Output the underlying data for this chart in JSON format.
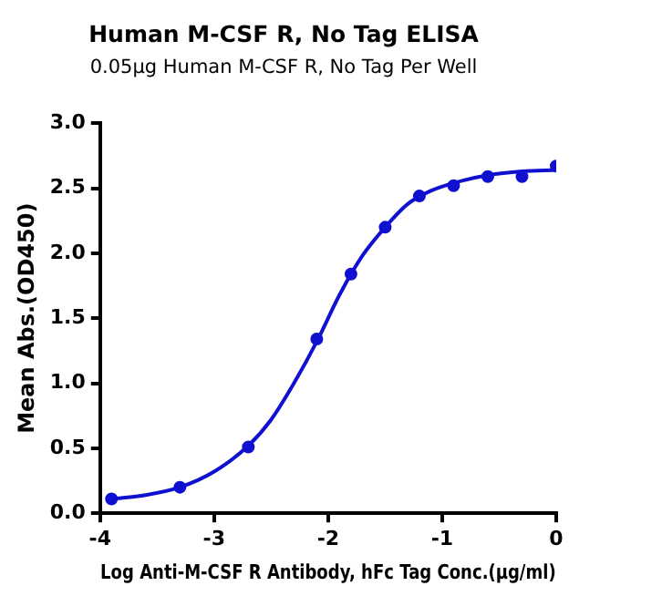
{
  "chart_data": {
    "type": "scatter",
    "title": "Human M-CSF R, No Tag ELISA",
    "subtitle": "0.05μg Human M-CSF R, No Tag Per Well",
    "xlabel": "Log Anti-M-CSF R Antibody, hFc Tag Conc.(μg/ml)",
    "ylabel": "Mean Abs.(OD450)",
    "xlim": [
      -4,
      0
    ],
    "xticks": [
      -4,
      -3,
      -2,
      -1,
      0
    ],
    "ylim": [
      0,
      3
    ],
    "yticks": [
      {
        "value": 0,
        "label": "0.0"
      },
      {
        "value": 0.5,
        "label": "0.5"
      },
      {
        "value": 1,
        "label": "1.0"
      },
      {
        "value": 1.5,
        "label": "1.5"
      },
      {
        "value": 2,
        "label": "2.0"
      },
      {
        "value": 2.5,
        "label": "2.5"
      },
      {
        "value": 3,
        "label": "3.0"
      }
    ],
    "grid": false,
    "legend": false,
    "marker": "circle",
    "series": [
      {
        "type": "scatter",
        "color": "#1010d0",
        "x": [
          -3.9,
          -3.3,
          -2.7,
          -2.1,
          -1.8,
          -1.5,
          -1.2,
          -0.9,
          -0.6,
          -0.3,
          0
        ],
        "values": [
          0.11,
          0.2,
          0.51,
          1.34,
          1.84,
          2.2,
          2.44,
          2.52,
          2.59,
          2.59,
          2.67
        ]
      },
      {
        "type": "line",
        "color": "#1010d0",
        "marker": "none",
        "line_style": "solid",
        "x": [
          -3.9,
          -3.6,
          -3.3,
          -3.0,
          -2.7,
          -2.5,
          -2.3,
          -2.1,
          -1.9,
          -1.7,
          -1.5,
          -1.3,
          -1.1,
          -0.9,
          -0.6,
          -0.3,
          0
        ],
        "values": [
          0.11,
          0.14,
          0.2,
          0.32,
          0.52,
          0.72,
          1.0,
          1.32,
          1.68,
          1.98,
          2.2,
          2.38,
          2.48,
          2.54,
          2.6,
          2.63,
          2.64
        ]
      }
    ]
  }
}
